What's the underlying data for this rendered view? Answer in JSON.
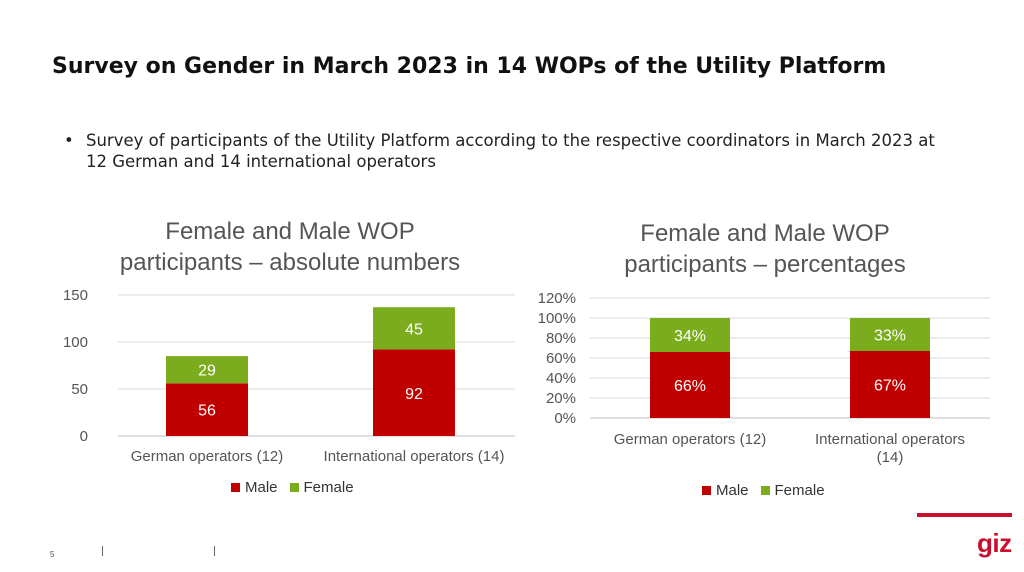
{
  "slide": {
    "title": "Survey on Gender in March 2023 in 14 WOPs of the Utility Platform",
    "bullet": "Survey of participants of the Utility Platform according to the respective coordinators in March 2023 at 12 German and 14 international operators",
    "footer_page": "5",
    "logo": "giz"
  },
  "colors": {
    "male": "#c00000",
    "female": "#7bac1e",
    "brand": "#c8102e"
  },
  "chart_data": [
    {
      "type": "bar",
      "stacked": true,
      "title": "Female and Male WOP participants – absolute numbers",
      "title_lines": [
        "Female and Male WOP",
        "participants – absolute numbers"
      ],
      "categories": [
        "German operators (12)",
        "International operators (14)"
      ],
      "category_lines": [
        [
          "German operators (12)"
        ],
        [
          "International operators (14)"
        ]
      ],
      "series": [
        {
          "name": "Male",
          "values": [
            56,
            92
          ],
          "labels": [
            "56",
            "92"
          ]
        },
        {
          "name": "Female",
          "values": [
            29,
            45
          ],
          "labels": [
            "29",
            "45"
          ]
        }
      ],
      "ylim": [
        0,
        150
      ],
      "yticks": [
        0,
        50,
        100,
        150
      ],
      "ytick_labels": [
        "0",
        "50",
        "100",
        "150"
      ],
      "grid": true,
      "legend": "bottom"
    },
    {
      "type": "bar",
      "stacked": true,
      "title": "Female and Male WOP participants – percentages",
      "title_lines": [
        "Female and Male WOP",
        "participants – percentages"
      ],
      "categories": [
        "German operators (12)",
        "International operators (14)"
      ],
      "category_lines": [
        [
          "German operators (12)"
        ],
        [
          "International operators",
          "(14)"
        ]
      ],
      "series": [
        {
          "name": "Male",
          "values": [
            66,
            67
          ],
          "labels": [
            "66%",
            "67%"
          ]
        },
        {
          "name": "Female",
          "values": [
            34,
            33
          ],
          "labels": [
            "34%",
            "33%"
          ]
        }
      ],
      "ylim": [
        0,
        120
      ],
      "yticks": [
        0,
        20,
        40,
        60,
        80,
        100,
        120
      ],
      "ytick_labels": [
        "0%",
        "20%",
        "40%",
        "60%",
        "80%",
        "100%",
        "120%"
      ],
      "grid": true,
      "legend": "bottom"
    }
  ]
}
